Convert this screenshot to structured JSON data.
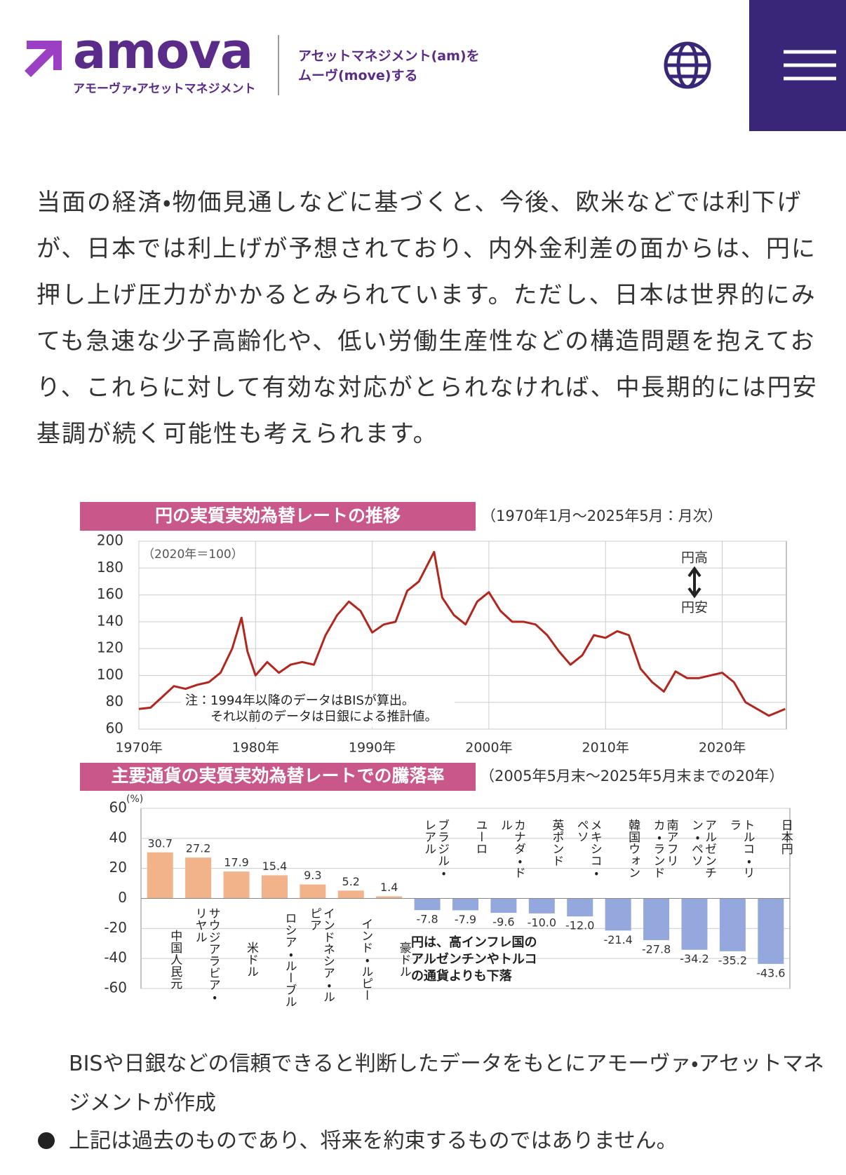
{
  "header": {
    "logo": "amova",
    "logo_sub": "アモーヴァ・アセットマネジメント",
    "tagline": [
      "アセットマネジメント(am)を",
      "ムーヴ(move)する"
    ]
  },
  "body_text": "当面の経済・物価見通しなどに基づくと、今後、欧米などでは利下げが、日本では利上げが予想されており、内外金利差の面からは、円に押し上げ圧力がかかるとみられています。ただし、日本は世界的にみても急速な少子高齢化や、低い労働生産性などの構造問題を抱えており、これらに対して有効な対応がとられなければ、中長期的には円安基調が続く可能性も考えられます。",
  "chart_data": [
    {
      "type": "line",
      "title": "円の実質実効為替レートの推移",
      "subtitle": "（1970年1月～2025年5月：月次）",
      "unit_note": "（2020年＝100）",
      "annotations": [
        "円高",
        "円安"
      ],
      "note": [
        "注：1994年以降のデータはBISが算出。",
        "それ以前のデータは日銀による推計値。"
      ],
      "color": "#b3261e",
      "grid": true,
      "x": [
        1970,
        1971,
        1972,
        1973,
        1974,
        1975,
        1976,
        1977,
        1978,
        1978.8,
        1979.3,
        1980,
        1981,
        1982,
        1983,
        1984,
        1985,
        1986,
        1987,
        1988,
        1989,
        1990,
        1991,
        1992,
        1993,
        1994,
        1995.3,
        1996,
        1997,
        1998,
        1999,
        2000,
        2001,
        2002,
        2003,
        2004,
        2005,
        2006,
        2007,
        2008,
        2009,
        2010,
        2011,
        2012,
        2013,
        2014,
        2015,
        2016,
        2017,
        2018,
        2019,
        2020,
        2021,
        2022,
        2023,
        2024,
        2025.4
      ],
      "values": [
        75,
        76,
        84,
        92,
        90,
        93,
        95,
        102,
        120,
        143,
        118,
        100,
        110,
        102,
        108,
        110,
        108,
        130,
        145,
        155,
        148,
        132,
        138,
        140,
        163,
        170,
        192,
        158,
        145,
        138,
        155,
        162,
        148,
        140,
        140,
        138,
        130,
        118,
        108,
        115,
        130,
        128,
        133,
        130,
        105,
        95,
        88,
        103,
        98,
        98,
        100,
        102,
        95,
        80,
        75,
        70,
        75
      ],
      "xlim": [
        1970,
        2025.5
      ],
      "xticks": [
        {
          "value": 1970,
          "label": "1970年"
        },
        {
          "value": 1980,
          "label": "1980年"
        },
        {
          "value": 1990,
          "label": "1990年"
        },
        {
          "value": 2000,
          "label": "2000年"
        },
        {
          "value": 2010,
          "label": "2010年"
        },
        {
          "value": 2020,
          "label": "2020年"
        }
      ],
      "ylim": [
        60,
        200
      ],
      "yticks": [
        60,
        80,
        100,
        120,
        140,
        160,
        180,
        200
      ]
    },
    {
      "type": "bar",
      "title": "主要通貨の実質実効為替レートでの騰落率",
      "subtitle": "（2005年5月末～2025年5月末までの20年）",
      "unit": "(%)",
      "annotation": [
        "円は、高インフレ国の",
        "アルゼンチンやトルコ",
        "の通貨よりも下落"
      ],
      "color_positive": "#f2b38a",
      "color_negative": "#94a8de",
      "grid": true,
      "categories": [
        "中国人民元",
        "サウジアラビア・リヤル",
        "米ドル",
        "ロシア・ルーブル",
        "インドネシア・ルピア",
        "インド・ルピー",
        "豪ドル",
        "ブラジル・レアル",
        "ユーロ",
        "カナダ・ドル",
        "英ポンド",
        "メキシコ・ペソ",
        "韓国ウォン",
        "南アフリカ・ランド",
        "アルゼンチン・ペソ",
        "トルコ・リラ",
        "日本円"
      ],
      "values": [
        30.7,
        27.2,
        17.9,
        15.4,
        9.3,
        5.2,
        1.4,
        -7.8,
        -7.9,
        -9.6,
        -10,
        -12,
        -21.4,
        -27.8,
        -34.2,
        -35.2,
        -43.6
      ],
      "value_labels": [
        "30.7",
        "27.2",
        "17.9",
        "15.4",
        "9.3",
        "5.2",
        "1.4",
        "-7.8",
        "-7.9",
        "-9.6",
        "-10.0",
        "-12.0",
        "-21.4",
        "-27.8",
        "-34.2",
        "-35.2",
        "-43.6"
      ],
      "ylim": [
        -60,
        60
      ],
      "yticks": [
        -60,
        -40,
        -20,
        0,
        20,
        40,
        60
      ]
    }
  ],
  "footer": {
    "source": "BISや日銀などの信頼できると判断したデータをもとにアモーヴァ・アセットマネジメントが作成",
    "disclaimer": "上記は過去のものであり、将来を約束するものではありません。"
  }
}
